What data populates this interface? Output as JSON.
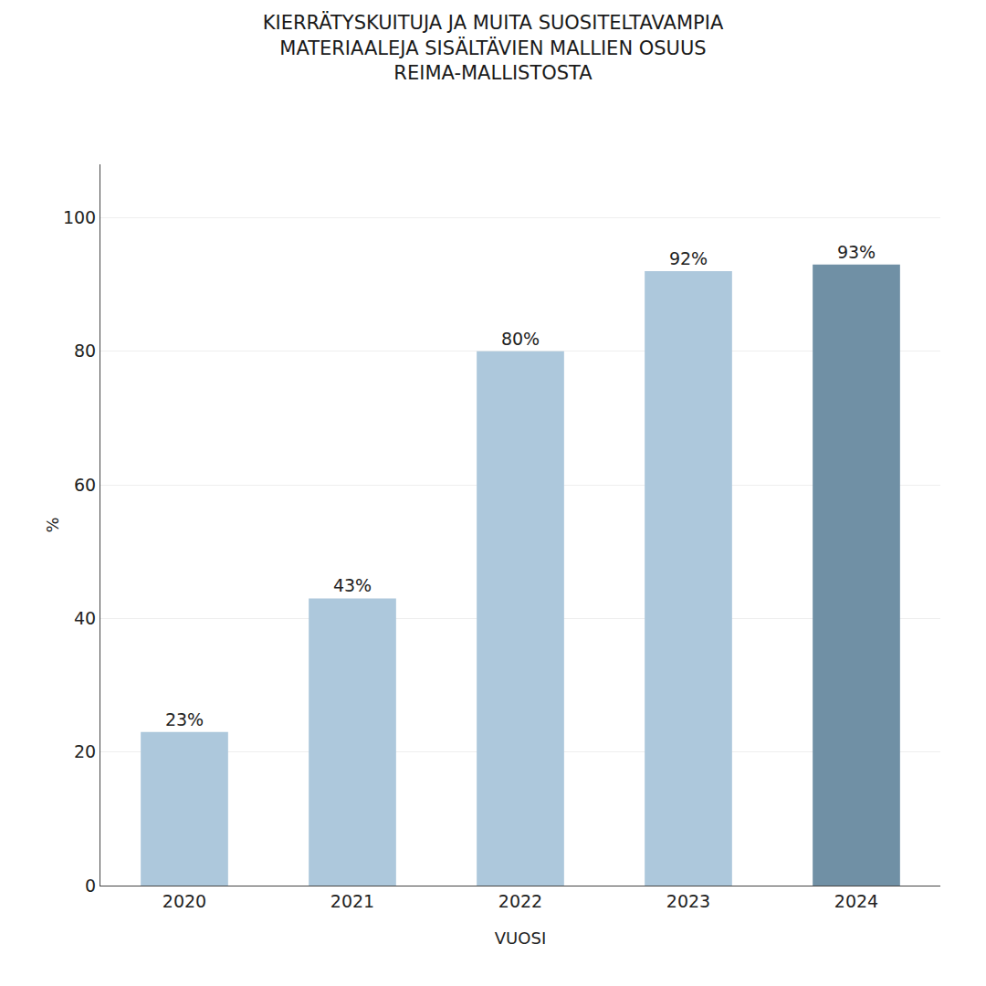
{
  "chart_data": {
    "type": "bar",
    "title": "KIERRÄTYSKUITUJA JA MUITA SUOSITELTAVAMPIA\nMATERIAALEJA SISÄLTÄVIEN MALLIEN OSUUS\nREIMA-MALLISTOSTA",
    "categories": [
      "2020",
      "2021",
      "2022",
      "2023",
      "2024"
    ],
    "values": [
      23,
      43,
      80,
      92,
      93
    ],
    "value_labels": [
      "23%",
      "43%",
      "80%",
      "92%",
      "93%"
    ],
    "data_labels": true,
    "colors": [
      "#adc8dc",
      "#adc8dc",
      "#adc8dc",
      "#adc8dc",
      "#7090a5"
    ],
    "x_label": "VUOSI",
    "y_label": "%",
    "ylim": [
      0,
      108
    ],
    "yticks": [
      0,
      20,
      40,
      60,
      80,
      100
    ],
    "grid": true
  }
}
